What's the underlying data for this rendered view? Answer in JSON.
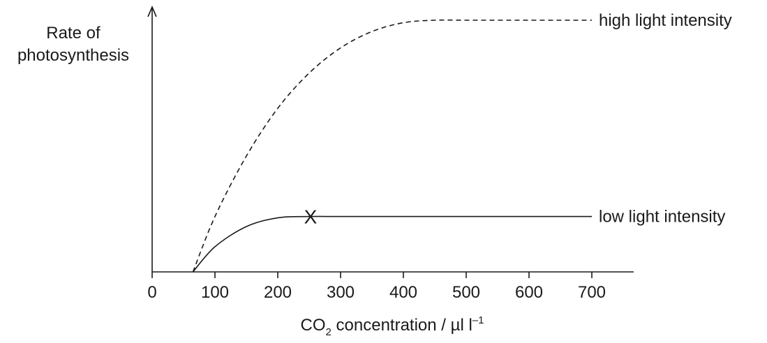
{
  "chart_data": {
    "type": "line",
    "ylabel_line1": "Rate of",
    "ylabel_line2": "photosynthesis",
    "xlabel_prefix": "CO",
    "xlabel_sub": "2",
    "xlabel_suffix": " concentration / µl l",
    "xlabel_sup": "–1",
    "xlim": [
      0,
      760
    ],
    "ylim": [
      0,
      1
    ],
    "xticks": [
      0,
      100,
      200,
      300,
      400,
      500,
      600,
      700
    ],
    "yticks_shown": false,
    "grid": false,
    "series": [
      {
        "name": "high light intensity",
        "style": "dashed",
        "x": [
          65,
          100,
          150,
          200,
          250,
          300,
          350,
          400,
          450,
          500,
          550,
          600,
          650,
          700
        ],
        "y": [
          0.0,
          0.22,
          0.46,
          0.65,
          0.79,
          0.89,
          0.955,
          0.99,
          1.0,
          1.0,
          1.0,
          1.0,
          1.0,
          1.0
        ]
      },
      {
        "name": "low light intensity",
        "style": "solid",
        "x": [
          65,
          100,
          150,
          200,
          250,
          300,
          400,
          500,
          600,
          700
        ],
        "y": [
          0.0,
          0.1,
          0.18,
          0.215,
          0.22,
          0.22,
          0.22,
          0.22,
          0.22,
          0.22
        ]
      }
    ],
    "annotations": [
      {
        "text": "X",
        "x": 250,
        "y": 0.22
      }
    ]
  }
}
